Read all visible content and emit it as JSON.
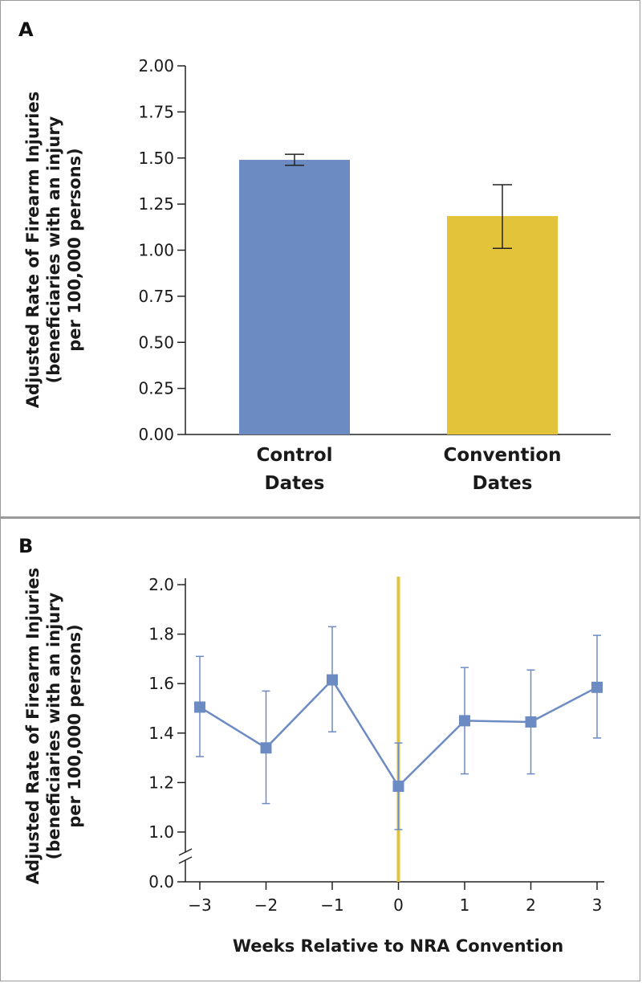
{
  "chart_data": [
    {
      "panel": "A",
      "type": "bar",
      "categories": [
        [
          "Control",
          "Dates"
        ],
        [
          "Convention",
          "Dates"
        ]
      ],
      "values": [
        1.49,
        1.185
      ],
      "error_low": [
        1.46,
        1.01
      ],
      "error_high": [
        1.52,
        1.355
      ],
      "colors": [
        "#6d8bc3",
        "#e3c33a"
      ],
      "ylabel": [
        "Adjusted Rate of Firearm Injuries",
        "(beneficiaries with an injury",
        "per 100,000 persons)"
      ],
      "ylim": [
        0,
        2.0
      ],
      "yticks": [
        "0.00",
        "0.25",
        "0.50",
        "0.75",
        "1.00",
        "1.25",
        "1.50",
        "1.75",
        "2.00"
      ],
      "grid": false
    },
    {
      "panel": "B",
      "type": "line",
      "x": [
        -3,
        -2,
        -1,
        0,
        1,
        2,
        3
      ],
      "xticks": [
        "−3",
        "−2",
        "−1",
        "0",
        "1",
        "2",
        "3"
      ],
      "values": [
        1.505,
        1.34,
        1.615,
        1.185,
        1.45,
        1.445,
        1.585
      ],
      "error_low": [
        1.305,
        1.115,
        1.405,
        1.01,
        1.235,
        1.235,
        1.38
      ],
      "error_high": [
        1.71,
        1.57,
        1.83,
        1.36,
        1.665,
        1.655,
        1.795
      ],
      "xlabel": "Weeks Relative to NRA Convention",
      "ylabel": [
        "Adjusted Rate of Firearm Injuries",
        "(beneficiaries with an injury",
        "per 100,000 persons)"
      ],
      "ylim": [
        0.0,
        2.0
      ],
      "yticks": [
        "0.0",
        "1.0",
        "1.2",
        "1.4",
        "1.6",
        "1.8",
        "2.0"
      ],
      "axis_break": true,
      "reference_line_x": 0,
      "line_color": "#6d8bc3",
      "reference_color": "#e3c33a",
      "grid": false
    }
  ],
  "panels": {
    "a_label": "A",
    "b_label": "B"
  }
}
